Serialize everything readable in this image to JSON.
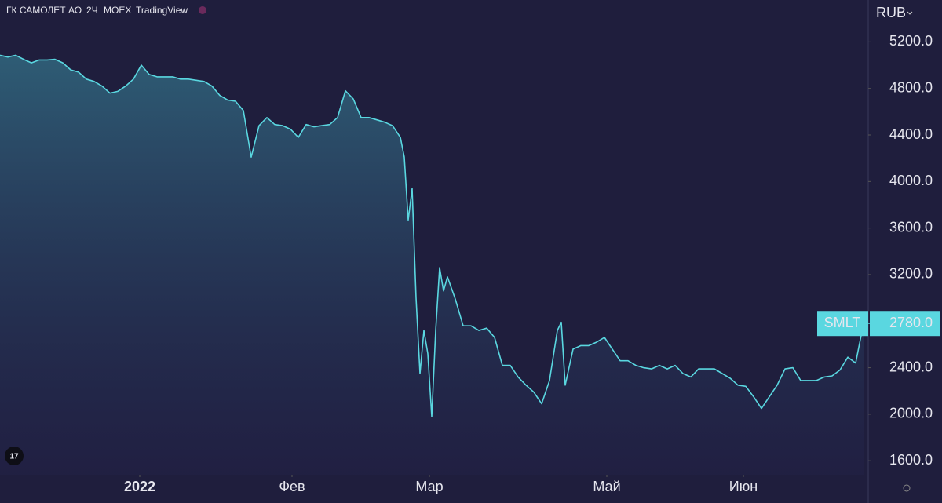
{
  "chart_data": {
    "type": "area",
    "header": [
      "ГК САМОЛЕТ АО",
      "2Ч",
      "MOEX",
      "TradingView"
    ],
    "currency": "RUB",
    "series": [
      {
        "name": "SMLT",
        "color": "#5ad7e0",
        "x": [
          0,
          1,
          2,
          3,
          4,
          5,
          6,
          7,
          8,
          9,
          10,
          11,
          12,
          13,
          14,
          15,
          16,
          17,
          18,
          19,
          20,
          21,
          22,
          23,
          24,
          25,
          26,
          27,
          28,
          29,
          30,
          31,
          32,
          33,
          34,
          35,
          36,
          37,
          38,
          39,
          40,
          41,
          42,
          43,
          44,
          45,
          46,
          47,
          48,
          49,
          50,
          51,
          51.5,
          52,
          52.5,
          53,
          53.5,
          54,
          54.5,
          55,
          55.5,
          56,
          56.5,
          57,
          58,
          59,
          60,
          61,
          62,
          63,
          64,
          65,
          66,
          67,
          68,
          69,
          70,
          71,
          71.5,
          72,
          73,
          74,
          75,
          76,
          77,
          78,
          79,
          80,
          81,
          82,
          83,
          84,
          85,
          86,
          87,
          88,
          89,
          90,
          91,
          92,
          93,
          94,
          95,
          96,
          97,
          98,
          99,
          100,
          101,
          102,
          103,
          104,
          105,
          106,
          107,
          108,
          109,
          110
        ],
        "values": [
          5085,
          5070,
          5085,
          5050,
          5020,
          5045,
          5045,
          5050,
          5020,
          4960,
          4940,
          4880,
          4860,
          4820,
          4760,
          4775,
          4820,
          4880,
          5000,
          4920,
          4900,
          4900,
          4900,
          4880,
          4880,
          4870,
          4860,
          4820,
          4740,
          4700,
          4690,
          4610,
          4210,
          4480,
          4550,
          4490,
          4480,
          4450,
          4380,
          4490,
          4470,
          4480,
          4490,
          4550,
          4780,
          4710,
          4550,
          4550,
          4530,
          4510,
          4480,
          4380,
          4210,
          3670,
          3940,
          3000,
          2350,
          2720,
          2520,
          1980,
          2720,
          3260,
          3060,
          3180,
          2990,
          2760,
          2760,
          2720,
          2740,
          2660,
          2420,
          2420,
          2320,
          2250,
          2190,
          2090,
          2290,
          2720,
          2790,
          2250,
          2560,
          2590,
          2590,
          2620,
          2660,
          2560,
          2460,
          2460,
          2420,
          2400,
          2390,
          2420,
          2390,
          2420,
          2350,
          2320,
          2390,
          2390,
          2390,
          2350,
          2310,
          2250,
          2240,
          2150,
          2050,
          2150,
          2250,
          2390,
          2400,
          2290,
          2290,
          2290,
          2320,
          2330,
          2380,
          2490,
          2440,
          2780
        ]
      }
    ],
    "last_price": {
      "value": 2780,
      "label": "2780.0"
    },
    "xlim": [
      0,
      110.5
    ],
    "xticks": [
      {
        "value": 17.8,
        "label": "2022"
      },
      {
        "value": 37.2,
        "label": "Фев"
      },
      {
        "value": 54.7,
        "label": "Мар"
      },
      {
        "value": 77.3,
        "label": "Май"
      },
      {
        "value": 94.7,
        "label": "Июн"
      }
    ],
    "ylim": [
      1480,
      5560
    ],
    "yticks": [
      {
        "value": 1600,
        "label": "1600.0"
      },
      {
        "value": 2000,
        "label": "2000.0"
      },
      {
        "value": 2400,
        "label": "2400.0"
      },
      {
        "value": 3200,
        "label": "3200.0"
      },
      {
        "value": 3600,
        "label": "3600.0"
      },
      {
        "value": 4000,
        "label": "4000.0"
      },
      {
        "value": 4400,
        "label": "4400.0"
      },
      {
        "value": 4800,
        "label": "4800.0"
      },
      {
        "value": 5200,
        "label": "5200.0"
      }
    ]
  }
}
